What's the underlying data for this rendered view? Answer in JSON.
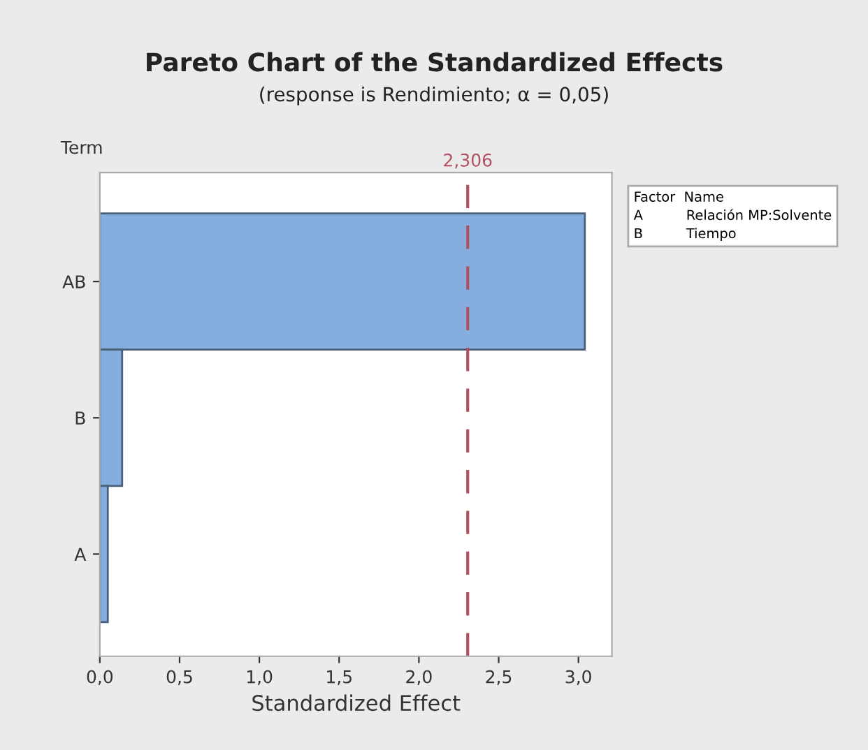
{
  "chart_data": {
    "type": "bar",
    "orientation": "horizontal",
    "title": "Pareto Chart of the Standardized Effects",
    "subtitle": "(response is Rendimiento; α = 0,05)",
    "xlabel": "Standardized Effect",
    "ylabel": "Term",
    "categories": [
      "AB",
      "B",
      "A"
    ],
    "values": [
      3.04,
      0.14,
      0.05
    ],
    "color": "#85aedf",
    "xlim": [
      0,
      3.21
    ],
    "xticks": [
      {
        "value": 0,
        "label": "0,0"
      },
      {
        "value": 0.5,
        "label": "0,5"
      },
      {
        "value": 1,
        "label": "1,0"
      },
      {
        "value": 1.5,
        "label": "1,5"
      },
      {
        "value": 2,
        "label": "2,0"
      },
      {
        "value": 2.5,
        "label": "2,5"
      },
      {
        "value": 3,
        "label": "3,0"
      }
    ],
    "ref_lines": [
      {
        "axis": "x",
        "value": 2.306,
        "label": "2,306",
        "color": "#b05060",
        "line_style": "dashed"
      }
    ],
    "annotations": [
      "Factor  Name\nA          Relación MP:Solvente\nB          Tiempo"
    ],
    "grid": false,
    "legend": false
  }
}
